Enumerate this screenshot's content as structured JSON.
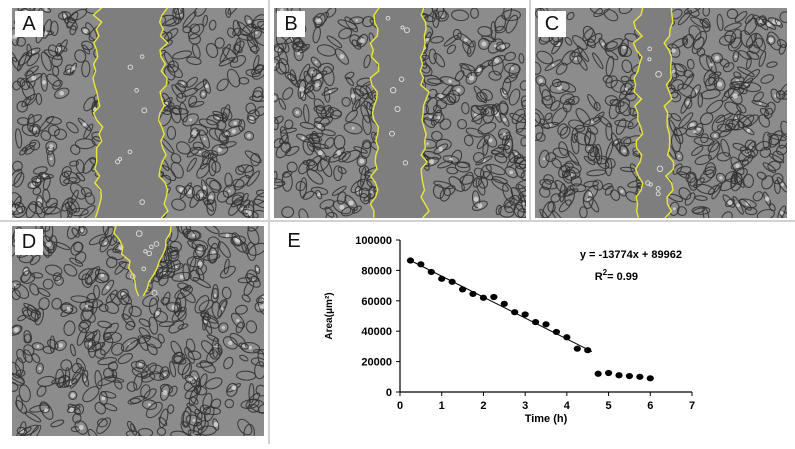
{
  "panels": [
    {
      "id": "A",
      "label": "A",
      "gap_width": "wide"
    },
    {
      "id": "B",
      "label": "B",
      "gap_width": "medium"
    },
    {
      "id": "C",
      "label": "C",
      "gap_width": "narrow"
    },
    {
      "id": "D",
      "label": "D",
      "gap_width": "closed"
    }
  ],
  "colors": {
    "cell_background": "#8c8c8c",
    "cell_edge": "#303030",
    "cell_highlight": "#d8d8d8",
    "wound_region": "#7e7e7e",
    "wound_outline": "#e8e63a",
    "divider": "#d2d2d2"
  },
  "chart_label": "E",
  "chart_data": {
    "type": "scatter",
    "title": "",
    "xlabel": "Time (h)",
    "ylabel": "Area(μm²)",
    "xlim": [
      0,
      7
    ],
    "ylim": [
      0,
      100000
    ],
    "xticks": [
      "0",
      "1",
      "2",
      "3",
      "4",
      "5",
      "6",
      "7"
    ],
    "yticks": [
      "0",
      "20000",
      "40000",
      "60000",
      "80000",
      "100000"
    ],
    "grid": false,
    "equation": "y = -13774x + 89962",
    "r2_prefix": "R",
    "r2_sup": "2",
    "r2_value": "= 0.99",
    "trendline": {
      "slope": -13774,
      "intercept": 89962,
      "x_range": [
        0.25,
        4.6
      ]
    },
    "series": [
      {
        "x": [
          0.25,
          0.5,
          0.75,
          1.0,
          1.25,
          1.5,
          1.75,
          2.0,
          2.25,
          2.5,
          2.75,
          3.0,
          3.25,
          3.5,
          3.75,
          4.0,
          4.25,
          4.5,
          4.75,
          5.0,
          5.25,
          5.5,
          5.75,
          6.0
        ],
        "y": [
          86500,
          84000,
          79000,
          74500,
          72500,
          67500,
          64500,
          62000,
          62500,
          58000,
          52500,
          51000,
          46000,
          44500,
          39500,
          36000,
          28500,
          27500,
          12000,
          12500,
          11000,
          10500,
          10000,
          9000
        ]
      }
    ]
  }
}
